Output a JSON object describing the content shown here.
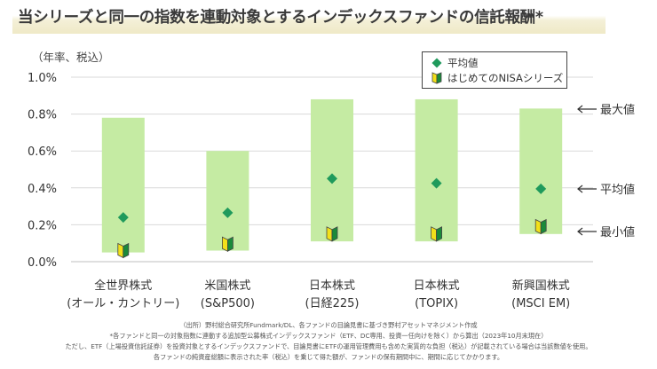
{
  "title": "当シリーズと同一の指数を連動対象とするインデックスファンドの信託報酬*",
  "unit_label": "（年率、税込）",
  "chart_data": {
    "type": "range-bar",
    "categories": [
      {
        "line1": "全世界株式",
        "line2": "(オール・カントリー)"
      },
      {
        "line1": "米国株式",
        "line2": "(S&P500)"
      },
      {
        "line1": "日本株式",
        "line2": "(日経225)"
      },
      {
        "line1": "日本株式",
        "line2": "(TOPIX)"
      },
      {
        "line1": "新興国株式",
        "line2": "(MSCI EM)"
      }
    ],
    "min": [
      0.05,
      0.06,
      0.11,
      0.11,
      0.15
    ],
    "max": [
      0.78,
      0.6,
      0.88,
      0.88,
      0.83
    ],
    "average": [
      0.24,
      0.265,
      0.45,
      0.425,
      0.395
    ],
    "nisa_series": [
      0.06,
      0.095,
      0.15,
      0.15,
      0.19
    ],
    "ylim": [
      0,
      1.0
    ],
    "yticks": [
      "0.0%",
      "0.2%",
      "0.4%",
      "0.6%",
      "0.8%",
      "1.0%"
    ],
    "legend": {
      "average": "平均値",
      "nisa": "はじめてのNISAシリーズ"
    },
    "annotations": {
      "max": "最大値",
      "avg": "平均値",
      "min": "最小値"
    },
    "colors": {
      "bar": "#c5eba3",
      "diamond": "#1f9a5c",
      "nisa_yellow": "#f2e01a",
      "nisa_green": "#1a8a3a",
      "grid": "#d9d9d9"
    }
  },
  "footnotes": [
    "（出所）野村総合研究所Fundmark/DL、各ファンドの目論見書に基づき野村アセットマネジメント作成",
    "*各ファンドと同一の対象指数に連動する追加型公募株式インデックスファンド（ETF、DC専用、投資一任向けを除く）から算出（2023年10月末現在）",
    "ただし、ETF（上場投資信託証券）を投資対象とするインデックスファンドで、目論見書にETFの運用管理費用も含めた実質的な負担（税込）が記載されている場合は当該数値を使用。",
    "各ファンドの純資産総額に表示された率（税込）を乗じて得た額が、ファンドの保有期間中に、期間に応じてかかります。"
  ]
}
